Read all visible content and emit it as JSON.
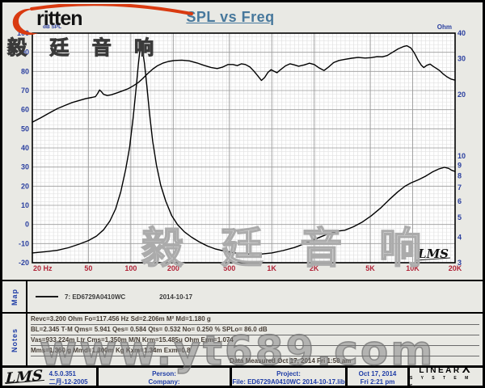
{
  "title": "SPL vs Freq",
  "branding": {
    "logo_text": "ritten",
    "logo_swoosh_color": "#d93a10"
  },
  "watermarks": {
    "cjk": "毅 廷 音 响",
    "site": "www.yt689.com"
  },
  "chart_data": {
    "type": "line",
    "title": "SPL vs Freq",
    "x_axis": {
      "scale": "log",
      "min": 20,
      "max": 20000,
      "ticks": [
        20,
        50,
        100,
        200,
        500,
        1000,
        2000,
        5000,
        10000,
        20000
      ],
      "tick_labels": [
        "20  Hz",
        "50",
        "100",
        "200",
        "500",
        "1K",
        "2K",
        "5K",
        "10K",
        "20K"
      ]
    },
    "y_left": {
      "label": "dB SPL",
      "min": -20,
      "max": 100,
      "step": 10
    },
    "y_right": {
      "label": "Ohm",
      "scale": "log",
      "min": 3,
      "max": 40,
      "ticks": [
        40,
        30,
        20,
        10,
        9,
        8,
        7,
        6,
        5,
        4,
        3
      ]
    },
    "grid": true,
    "inner_watermark": "LMS",
    "series": [
      {
        "name": "SPL (curve 7: ED6729A0410WC)",
        "axis": "left",
        "points": [
          [
            20,
            53.5
          ],
          [
            23,
            55.8
          ],
          [
            26,
            58
          ],
          [
            30,
            60.5
          ],
          [
            34,
            62.2
          ],
          [
            38,
            63.6
          ],
          [
            43,
            64.8
          ],
          [
            48,
            65.8
          ],
          [
            53,
            66.4
          ],
          [
            56,
            66.8
          ],
          [
            58,
            68.3
          ],
          [
            60,
            70.3
          ],
          [
            62,
            69.3
          ],
          [
            64,
            68
          ],
          [
            68,
            67.4
          ],
          [
            73,
            67.8
          ],
          [
            80,
            68.8
          ],
          [
            88,
            69.9
          ],
          [
            96,
            71
          ],
          [
            105,
            72.6
          ],
          [
            113,
            74.2
          ],
          [
            122,
            76.4
          ],
          [
            132,
            78.9
          ],
          [
            143,
            81.2
          ],
          [
            155,
            83
          ],
          [
            170,
            84.4
          ],
          [
            185,
            85.2
          ],
          [
            205,
            85.7
          ],
          [
            230,
            85.9
          ],
          [
            260,
            85.5
          ],
          [
            295,
            84.4
          ],
          [
            330,
            83.2
          ],
          [
            370,
            82.1
          ],
          [
            410,
            81.5
          ],
          [
            450,
            82.3
          ],
          [
            490,
            83.6
          ],
          [
            530,
            83.6
          ],
          [
            570,
            83
          ],
          [
            610,
            84
          ],
          [
            650,
            83.6
          ],
          [
            700,
            82.3
          ],
          [
            750,
            80
          ],
          [
            800,
            77.5
          ],
          [
            845,
            75.3
          ],
          [
            890,
            76.8
          ],
          [
            940,
            79.5
          ],
          [
            990,
            80.9
          ],
          [
            1040,
            80
          ],
          [
            1090,
            79.3
          ],
          [
            1150,
            80.8
          ],
          [
            1250,
            82.9
          ],
          [
            1350,
            84
          ],
          [
            1450,
            83.4
          ],
          [
            1550,
            82.7
          ],
          [
            1700,
            83.4
          ],
          [
            1850,
            84.3
          ],
          [
            2000,
            83.6
          ],
          [
            2150,
            82
          ],
          [
            2350,
            80.5
          ],
          [
            2550,
            82.5
          ],
          [
            2750,
            84.6
          ],
          [
            3000,
            85.7
          ],
          [
            3300,
            86.3
          ],
          [
            3700,
            86.9
          ],
          [
            4100,
            87.3
          ],
          [
            4600,
            87
          ],
          [
            5100,
            87.2
          ],
          [
            5600,
            87.7
          ],
          [
            6100,
            87.6
          ],
          [
            6600,
            88.3
          ],
          [
            7200,
            90
          ],
          [
            7900,
            91.8
          ],
          [
            8600,
            93
          ],
          [
            9100,
            93.4
          ],
          [
            9700,
            92.3
          ],
          [
            10300,
            89.5
          ],
          [
            10900,
            86
          ],
          [
            11500,
            83.3
          ],
          [
            12000,
            82
          ],
          [
            12600,
            83.2
          ],
          [
            13300,
            83.8
          ],
          [
            14000,
            82.6
          ],
          [
            14800,
            81.5
          ],
          [
            15600,
            80.3
          ],
          [
            16500,
            78.6
          ],
          [
            17500,
            77.2
          ],
          [
            18700,
            76
          ],
          [
            20000,
            75.4
          ]
        ]
      },
      {
        "name": "Impedance",
        "axis": "right",
        "points": [
          [
            20,
            3.35
          ],
          [
            25,
            3.4
          ],
          [
            30,
            3.45
          ],
          [
            36,
            3.55
          ],
          [
            43,
            3.7
          ],
          [
            50,
            3.85
          ],
          [
            57,
            4.05
          ],
          [
            64,
            4.35
          ],
          [
            71,
            4.8
          ],
          [
            78,
            5.5
          ],
          [
            85,
            6.7
          ],
          [
            92,
            8.6
          ],
          [
            98,
            11
          ],
          [
            104,
            15.5
          ],
          [
            109,
            21.5
          ],
          [
            113,
            28
          ],
          [
            116,
            33
          ],
          [
            118,
            34.5
          ],
          [
            121,
            33
          ],
          [
            125,
            28.5
          ],
          [
            130,
            22
          ],
          [
            136,
            16
          ],
          [
            143,
            11.8
          ],
          [
            152,
            9
          ],
          [
            163,
            7.2
          ],
          [
            177,
            6
          ],
          [
            195,
            5.1
          ],
          [
            215,
            4.6
          ],
          [
            240,
            4.25
          ],
          [
            270,
            4
          ],
          [
            305,
            3.8
          ],
          [
            350,
            3.62
          ],
          [
            400,
            3.5
          ],
          [
            460,
            3.42
          ],
          [
            530,
            3.36
          ],
          [
            620,
            3.32
          ],
          [
            730,
            3.3
          ],
          [
            850,
            3.31
          ],
          [
            1000,
            3.35
          ],
          [
            1200,
            3.44
          ],
          [
            1450,
            3.56
          ],
          [
            1750,
            3.74
          ],
          [
            2100,
            3.95
          ],
          [
            2500,
            4.15
          ],
          [
            2900,
            4.28
          ],
          [
            3300,
            4.33
          ],
          [
            3800,
            4.5
          ],
          [
            4400,
            4.75
          ],
          [
            5100,
            5.1
          ],
          [
            5900,
            5.55
          ],
          [
            6800,
            6.1
          ],
          [
            7800,
            6.65
          ],
          [
            8800,
            7.1
          ],
          [
            9800,
            7.4
          ],
          [
            11000,
            7.65
          ],
          [
            12300,
            7.95
          ],
          [
            13800,
            8.35
          ],
          [
            15400,
            8.65
          ],
          [
            16800,
            8.8
          ],
          [
            18000,
            8.7
          ],
          [
            19000,
            8.5
          ],
          [
            20000,
            8.4
          ]
        ]
      }
    ],
    "colors": {
      "curve": "#000000",
      "axis_db_labels": "#2a3f9f",
      "axis_freq_labels": "#b02438",
      "grid_minor": "#dcdcdc",
      "grid_major": "#9a9a9a"
    }
  },
  "map": {
    "label": "Map",
    "legend": {
      "name": "7: ED6729A0410WC",
      "date": "2014-10-17"
    }
  },
  "notes": {
    "label": "Notes",
    "lines": {
      "0": "Revc=3.200 Ohm  Fo=117.456 Hz  Sd=2.206m M²  Md=1.180 g",
      "1": "BL=2.345 T·M  Qms= 5.941  Qes= 0.584  Qts= 0.532  No= 0.250 %  SPLo= 86.0 dB",
      "2": "Vas=933.224m Ltr  Cms=1.350m M/N  Krm=15.485u Ohm  Erm=1.074",
      "3": "Mms=1.360 g  Mmd=1.300m Kg  Kxm=1.34m  Exm=0.8",
      "4": "Data Measured  Oct 17, 2014  Fri 1:50 am"
    }
  },
  "statusbar": {
    "lms_logo": "LMS",
    "version": "4.5.0.351",
    "version_date": "二月-12-2005",
    "person_label": "Person:",
    "company_label": "Company:",
    "project_label": "Project:",
    "file_line": "File: ED6729A0410WC   2014-10-17.lib",
    "date": "Oct 17, 2014",
    "time": "Fri  2:21 pm",
    "brand": "LINEAR",
    "brand_x": "X",
    "brand_sub": "S Y S T E M S"
  }
}
